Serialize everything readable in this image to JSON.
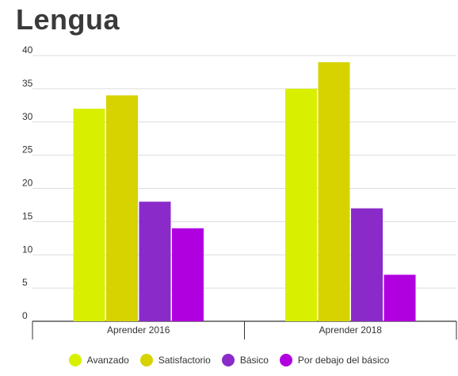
{
  "title": "Lengua",
  "chart_data": {
    "type": "bar",
    "categories": [
      "Aprender 2016",
      "Aprender 2018"
    ],
    "series": [
      {
        "name": "Avanzado",
        "values": [
          32,
          35
        ],
        "color": "#d8f000"
      },
      {
        "name": "Satisfactorio",
        "values": [
          34,
          39
        ],
        "color": "#d6d300"
      },
      {
        "name": "Básico",
        "values": [
          18,
          17
        ],
        "color": "#8a2bc9"
      },
      {
        "name": "Por debajo del básico",
        "values": [
          14,
          7
        ],
        "color": "#b100e0"
      }
    ],
    "ylim": [
      0,
      40
    ],
    "yticks": [
      0,
      5,
      10,
      15,
      20,
      25,
      30,
      35,
      40
    ],
    "grid": true,
    "legend": "bottom"
  }
}
